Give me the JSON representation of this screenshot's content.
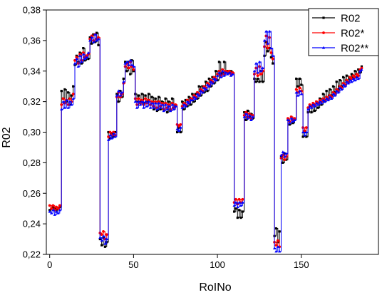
{
  "chart_data": {
    "type": "line",
    "xlabel": "RoINo",
    "ylabel": "R02",
    "xlim": [
      -2,
      196
    ],
    "ylim": [
      0.22,
      0.38
    ],
    "x_ticks": [
      0,
      50,
      100,
      150
    ],
    "y_ticks": [
      0.22,
      0.24,
      0.26,
      0.28,
      0.3,
      0.32,
      0.34,
      0.36,
      0.38
    ],
    "x_tick_labels": [
      "0",
      "50",
      "100",
      "150"
    ],
    "y_tick_labels": [
      "0,22",
      "0,24",
      "0,26",
      "0,28",
      "0,30",
      "0,32",
      "0,34",
      "0,36",
      "0,38"
    ],
    "legend_position": "top-right",
    "grid": false,
    "series": [
      {
        "name": "R02",
        "color": "#000000",
        "marker": "square",
        "values": [
          0.249,
          0.25,
          0.251,
          0.25,
          0.249,
          0.25,
          0.251,
          0.327,
          0.322,
          0.328,
          0.32,
          0.326,
          0.318,
          0.324,
          0.33,
          0.344,
          0.35,
          0.346,
          0.352,
          0.345,
          0.355,
          0.347,
          0.35,
          0.348,
          0.362,
          0.358,
          0.364,
          0.359,
          0.365,
          0.357,
          0.23,
          0.226,
          0.231,
          0.225,
          0.228,
          0.3,
          0.296,
          0.299,
          0.297,
          0.3,
          0.325,
          0.32,
          0.327,
          0.323,
          0.335,
          0.346,
          0.34,
          0.346,
          0.338,
          0.347,
          0.34,
          0.325,
          0.32,
          0.324,
          0.32,
          0.325,
          0.319,
          0.324,
          0.32,
          0.325,
          0.318,
          0.323,
          0.315,
          0.322,
          0.314,
          0.323,
          0.315,
          0.32,
          0.314,
          0.322,
          0.313,
          0.32,
          0.314,
          0.322,
          0.316,
          0.317,
          0.3,
          0.303,
          0.3,
          0.32,
          0.315,
          0.321,
          0.317,
          0.323,
          0.318,
          0.325,
          0.32,
          0.325,
          0.322,
          0.33,
          0.324,
          0.33,
          0.326,
          0.333,
          0.327,
          0.335,
          0.33,
          0.336,
          0.332,
          0.34,
          0.334,
          0.346,
          0.338,
          0.339,
          0.346,
          0.339,
          0.34,
          0.339,
          0.34,
          0.339,
          0.248,
          0.25,
          0.244,
          0.249,
          0.244,
          0.248,
          0.313,
          0.308,
          0.314,
          0.31,
          0.312,
          0.309,
          0.335,
          0.333,
          0.335,
          0.333,
          0.34,
          0.333,
          0.35,
          0.359,
          0.353,
          0.355,
          0.349,
          0.345,
          0.232,
          0.237,
          0.228,
          0.235,
          0.284,
          0.28,
          0.286,
          0.282,
          0.308,
          0.305,
          0.31,
          0.306,
          0.308,
          0.335,
          0.33,
          0.335,
          0.331,
          0.297,
          0.3,
          0.297,
          0.313,
          0.317,
          0.313,
          0.318,
          0.314,
          0.32,
          0.316,
          0.322,
          0.318,
          0.325,
          0.32,
          0.327,
          0.322,
          0.328,
          0.324,
          0.33,
          0.326,
          0.333,
          0.328,
          0.334,
          0.33,
          0.336,
          0.331,
          0.337,
          0.333,
          0.335,
          0.338,
          0.336,
          0.34,
          0.336,
          0.341,
          0.339,
          0.343
        ],
        "x_start": 0
      },
      {
        "name": "R02*",
        "color": "#ff0000",
        "marker": "circle",
        "values": [
          0.252,
          0.25,
          0.252,
          0.249,
          0.251,
          0.25,
          0.252,
          0.318,
          0.322,
          0.319,
          0.321,
          0.318,
          0.322,
          0.32,
          0.325,
          0.347,
          0.349,
          0.345,
          0.351,
          0.347,
          0.352,
          0.349,
          0.35,
          0.351,
          0.361,
          0.363,
          0.36,
          0.364,
          0.361,
          0.362,
          0.234,
          0.233,
          0.235,
          0.23,
          0.233,
          0.297,
          0.3,
          0.298,
          0.3,
          0.298,
          0.323,
          0.326,
          0.323,
          0.325,
          0.332,
          0.343,
          0.345,
          0.342,
          0.346,
          0.343,
          0.341,
          0.322,
          0.318,
          0.322,
          0.319,
          0.321,
          0.318,
          0.322,
          0.319,
          0.321,
          0.318,
          0.32,
          0.317,
          0.32,
          0.316,
          0.32,
          0.317,
          0.319,
          0.315,
          0.319,
          0.316,
          0.318,
          0.315,
          0.319,
          0.316,
          0.318,
          0.305,
          0.304,
          0.305,
          0.317,
          0.319,
          0.318,
          0.321,
          0.32,
          0.322,
          0.322,
          0.324,
          0.323,
          0.326,
          0.325,
          0.328,
          0.327,
          0.33,
          0.329,
          0.332,
          0.331,
          0.334,
          0.333,
          0.336,
          0.335,
          0.338,
          0.34,
          0.337,
          0.341,
          0.338,
          0.34,
          0.339,
          0.34,
          0.338,
          0.339,
          0.254,
          0.256,
          0.253,
          0.256,
          0.254,
          0.256,
          0.311,
          0.313,
          0.31,
          0.312,
          0.309,
          0.311,
          0.338,
          0.342,
          0.337,
          0.343,
          0.338,
          0.34,
          0.356,
          0.363,
          0.355,
          0.362,
          0.352,
          0.348,
          0.228,
          0.226,
          0.229,
          0.225,
          0.283,
          0.285,
          0.282,
          0.284,
          0.309,
          0.307,
          0.31,
          0.308,
          0.309,
          0.328,
          0.326,
          0.329,
          0.327,
          0.303,
          0.301,
          0.303,
          0.316,
          0.318,
          0.317,
          0.319,
          0.318,
          0.32,
          0.319,
          0.321,
          0.32,
          0.322,
          0.321,
          0.323,
          0.322,
          0.324,
          0.323,
          0.326,
          0.325,
          0.328,
          0.327,
          0.33,
          0.329,
          0.332,
          0.331,
          0.334,
          0.333,
          0.336,
          0.335,
          0.337,
          0.336,
          0.338,
          0.337,
          0.341,
          0.342
        ],
        "x_start": 0
      },
      {
        "name": "R02**",
        "color": "#0000ff",
        "marker": "triangle",
        "values": [
          0.248,
          0.247,
          0.249,
          0.246,
          0.248,
          0.247,
          0.249,
          0.315,
          0.32,
          0.316,
          0.321,
          0.316,
          0.32,
          0.318,
          0.322,
          0.345,
          0.348,
          0.343,
          0.35,
          0.346,
          0.351,
          0.348,
          0.349,
          0.352,
          0.36,
          0.362,
          0.359,
          0.364,
          0.36,
          0.361,
          0.231,
          0.229,
          0.232,
          0.227,
          0.23,
          0.295,
          0.298,
          0.296,
          0.299,
          0.297,
          0.324,
          0.327,
          0.324,
          0.326,
          0.333,
          0.345,
          0.346,
          0.344,
          0.347,
          0.344,
          0.343,
          0.32,
          0.316,
          0.32,
          0.318,
          0.32,
          0.316,
          0.32,
          0.317,
          0.32,
          0.316,
          0.319,
          0.316,
          0.319,
          0.315,
          0.319,
          0.316,
          0.318,
          0.314,
          0.318,
          0.315,
          0.317,
          0.314,
          0.318,
          0.315,
          0.317,
          0.302,
          0.301,
          0.303,
          0.316,
          0.318,
          0.317,
          0.32,
          0.319,
          0.321,
          0.321,
          0.323,
          0.322,
          0.325,
          0.324,
          0.327,
          0.326,
          0.329,
          0.328,
          0.331,
          0.33,
          0.333,
          0.332,
          0.335,
          0.334,
          0.337,
          0.339,
          0.336,
          0.34,
          0.337,
          0.339,
          0.338,
          0.339,
          0.337,
          0.338,
          0.252,
          0.254,
          0.251,
          0.254,
          0.252,
          0.254,
          0.31,
          0.312,
          0.309,
          0.311,
          0.308,
          0.31,
          0.34,
          0.345,
          0.339,
          0.346,
          0.34,
          0.342,
          0.36,
          0.366,
          0.358,
          0.366,
          0.355,
          0.35,
          0.224,
          0.222,
          0.225,
          0.222,
          0.285,
          0.287,
          0.284,
          0.286,
          0.308,
          0.306,
          0.309,
          0.307,
          0.308,
          0.326,
          0.324,
          0.327,
          0.325,
          0.3,
          0.298,
          0.3,
          0.315,
          0.317,
          0.316,
          0.318,
          0.317,
          0.319,
          0.318,
          0.32,
          0.319,
          0.321,
          0.32,
          0.322,
          0.321,
          0.323,
          0.322,
          0.325,
          0.324,
          0.327,
          0.326,
          0.329,
          0.328,
          0.331,
          0.33,
          0.333,
          0.332,
          0.334,
          0.333,
          0.335,
          0.334,
          0.336,
          0.335,
          0.34,
          0.341
        ],
        "x_start": 0
      }
    ]
  }
}
